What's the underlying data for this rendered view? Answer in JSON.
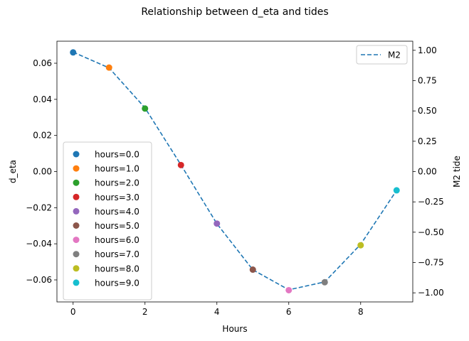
{
  "chart_data": {
    "type": "scatter",
    "title": "Relationship between d_eta and tides",
    "xlabel": "Hours",
    "ylabel": "d_eta",
    "y2label": "M2 tide",
    "xlim": [
      -0.45,
      9.45
    ],
    "ylim": [
      -0.0722,
      0.0722
    ],
    "y2lim": [
      -1.075,
      1.075
    ],
    "xticks": [
      0,
      2,
      4,
      6,
      8
    ],
    "yticks": [
      -0.06,
      -0.04,
      -0.02,
      0.0,
      0.02,
      0.04,
      0.06
    ],
    "ytick_labels": [
      "−0.06",
      "−0.04",
      "−0.02",
      "0.00",
      "0.02",
      "0.04",
      "0.06"
    ],
    "y2ticks": [
      -1.0,
      -0.75,
      -0.5,
      -0.25,
      0.0,
      0.25,
      0.5,
      0.75,
      1.0
    ],
    "y2tick_labels": [
      "−1.00",
      "−0.75",
      "−0.50",
      "−0.25",
      "0.00",
      "0.25",
      "0.50",
      "0.75",
      "1.00"
    ],
    "grid": false,
    "scatter_series": [
      {
        "name": "hours=0.0",
        "x": 0,
        "y": 0.066,
        "color": "#1f77b4"
      },
      {
        "name": "hours=1.0",
        "x": 1,
        "y": 0.0576,
        "color": "#ff7f0e"
      },
      {
        "name": "hours=2.0",
        "x": 2,
        "y": 0.0349,
        "color": "#2ca02c"
      },
      {
        "name": "hours=3.0",
        "x": 3,
        "y": 0.0036,
        "color": "#d62728"
      },
      {
        "name": "hours=4.0",
        "x": 4,
        "y": -0.0288,
        "color": "#9467bd"
      },
      {
        "name": "hours=5.0",
        "x": 5,
        "y": -0.0543,
        "color": "#8c564b"
      },
      {
        "name": "hours=6.0",
        "x": 6,
        "y": -0.0657,
        "color": "#e377c2"
      },
      {
        "name": "hours=7.0",
        "x": 7,
        "y": -0.0613,
        "color": "#7f7f7f"
      },
      {
        "name": "hours=8.0",
        "x": 8,
        "y": -0.0408,
        "color": "#bcbd22"
      },
      {
        "name": "hours=9.0",
        "x": 9,
        "y": -0.0104,
        "color": "#17becf"
      }
    ],
    "line_series": {
      "name": "M2",
      "color": "#1f77b4",
      "style": "dashed",
      "axis": "right",
      "x": [
        0,
        1,
        2,
        3,
        4,
        5,
        6,
        7,
        8,
        9
      ],
      "y": [
        0.985,
        0.855,
        0.525,
        0.055,
        -0.43,
        -0.81,
        -0.975,
        -0.91,
        -0.6,
        -0.155
      ]
    },
    "legend_left_placement": "lower-left",
    "legend_right_placement": "upper-right"
  }
}
